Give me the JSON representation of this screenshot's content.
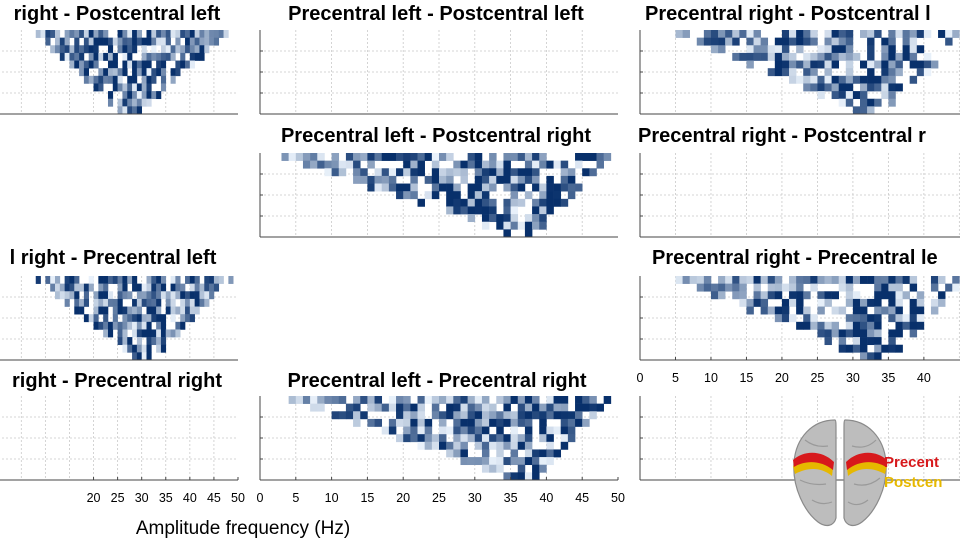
{
  "figure": {
    "xlabel": "Amplitude frequency (Hz)",
    "colors": {
      "grid": "#c9c9c9",
      "frame": "#444444",
      "cmap_low": "#eaf2fb",
      "cmap_high": "#08306b"
    }
  },
  "legend": {
    "precentral_label": "Precent",
    "postcentral_label": "Postcen",
    "precentral_color": "#d7191c",
    "postcentral_color": "#e6b800",
    "icon": "brain-icon"
  },
  "chart_data": [
    {
      "id": "r0c0",
      "type": "heatmap",
      "title": "right - Postcentral left",
      "xlim": [
        0,
        50
      ],
      "x_edges": [
        8,
        47
      ],
      "apex_x": 27,
      "grid_rows": 11,
      "seed": 11,
      "density": 0.78,
      "filled": true
    },
    {
      "id": "r0c1",
      "type": "heatmap",
      "title": "Precentral left - Postcentral left",
      "xlim": [
        0,
        50
      ],
      "filled": false
    },
    {
      "id": "r0c2",
      "type": "heatmap",
      "title": "Precentral right - Postcentral l",
      "xlim": [
        0,
        45
      ],
      "x_edges": [
        5,
        45
      ],
      "apex_x": 32,
      "grid_rows": 11,
      "seed": 23,
      "density": 0.7,
      "filled": true
    },
    {
      "id": "r1c1",
      "type": "heatmap",
      "title": "Precentral left - Postcentral right",
      "xlim": [
        0,
        50
      ],
      "x_edges": [
        3,
        48
      ],
      "apex_x": 36,
      "grid_rows": 11,
      "seed": 37,
      "density": 0.72,
      "filled": true
    },
    {
      "id": "r1c2",
      "type": "heatmap",
      "title": "Precentral right - Postcentral r",
      "xlim": [
        0,
        45
      ],
      "filled": false
    },
    {
      "id": "r2c0",
      "type": "heatmap",
      "title": "l right - Precentral left",
      "xlim": [
        0,
        50
      ],
      "x_edges": [
        8,
        48
      ],
      "apex_x": 30,
      "grid_rows": 11,
      "seed": 41,
      "density": 0.8,
      "filled": true
    },
    {
      "id": "r2c2",
      "type": "heatmap",
      "title": "Precentral right - Precentral le",
      "xlim": [
        0,
        45
      ],
      "x_edges": [
        5,
        45
      ],
      "apex_x": 33,
      "grid_rows": 11,
      "seed": 53,
      "density": 0.72,
      "filled": true
    },
    {
      "id": "r3c0",
      "type": "heatmap",
      "title": "right - Precentral right",
      "xlim": [
        0,
        50
      ],
      "xticks": [
        20,
        25,
        30,
        35,
        40,
        45,
        50
      ],
      "filled": false
    },
    {
      "id": "r3c1",
      "type": "heatmap",
      "title": "Precentral left - Precentral right",
      "xlim": [
        0,
        50
      ],
      "xticks": [
        0,
        5,
        10,
        15,
        20,
        25,
        30,
        35,
        40,
        45,
        50
      ],
      "x_edges": [
        4,
        48
      ],
      "apex_x": 36,
      "grid_rows": 11,
      "seed": 67,
      "density": 0.8,
      "filled": true
    },
    {
      "id": "r2c2x",
      "type": "axis",
      "xlim": [
        0,
        45
      ],
      "xticks": [
        0,
        5,
        10,
        15,
        20,
        25,
        30,
        35,
        40
      ]
    },
    {
      "id": "r3c2",
      "type": "heatmap",
      "title": "",
      "xlim": [
        0,
        45
      ],
      "filled": false
    }
  ]
}
